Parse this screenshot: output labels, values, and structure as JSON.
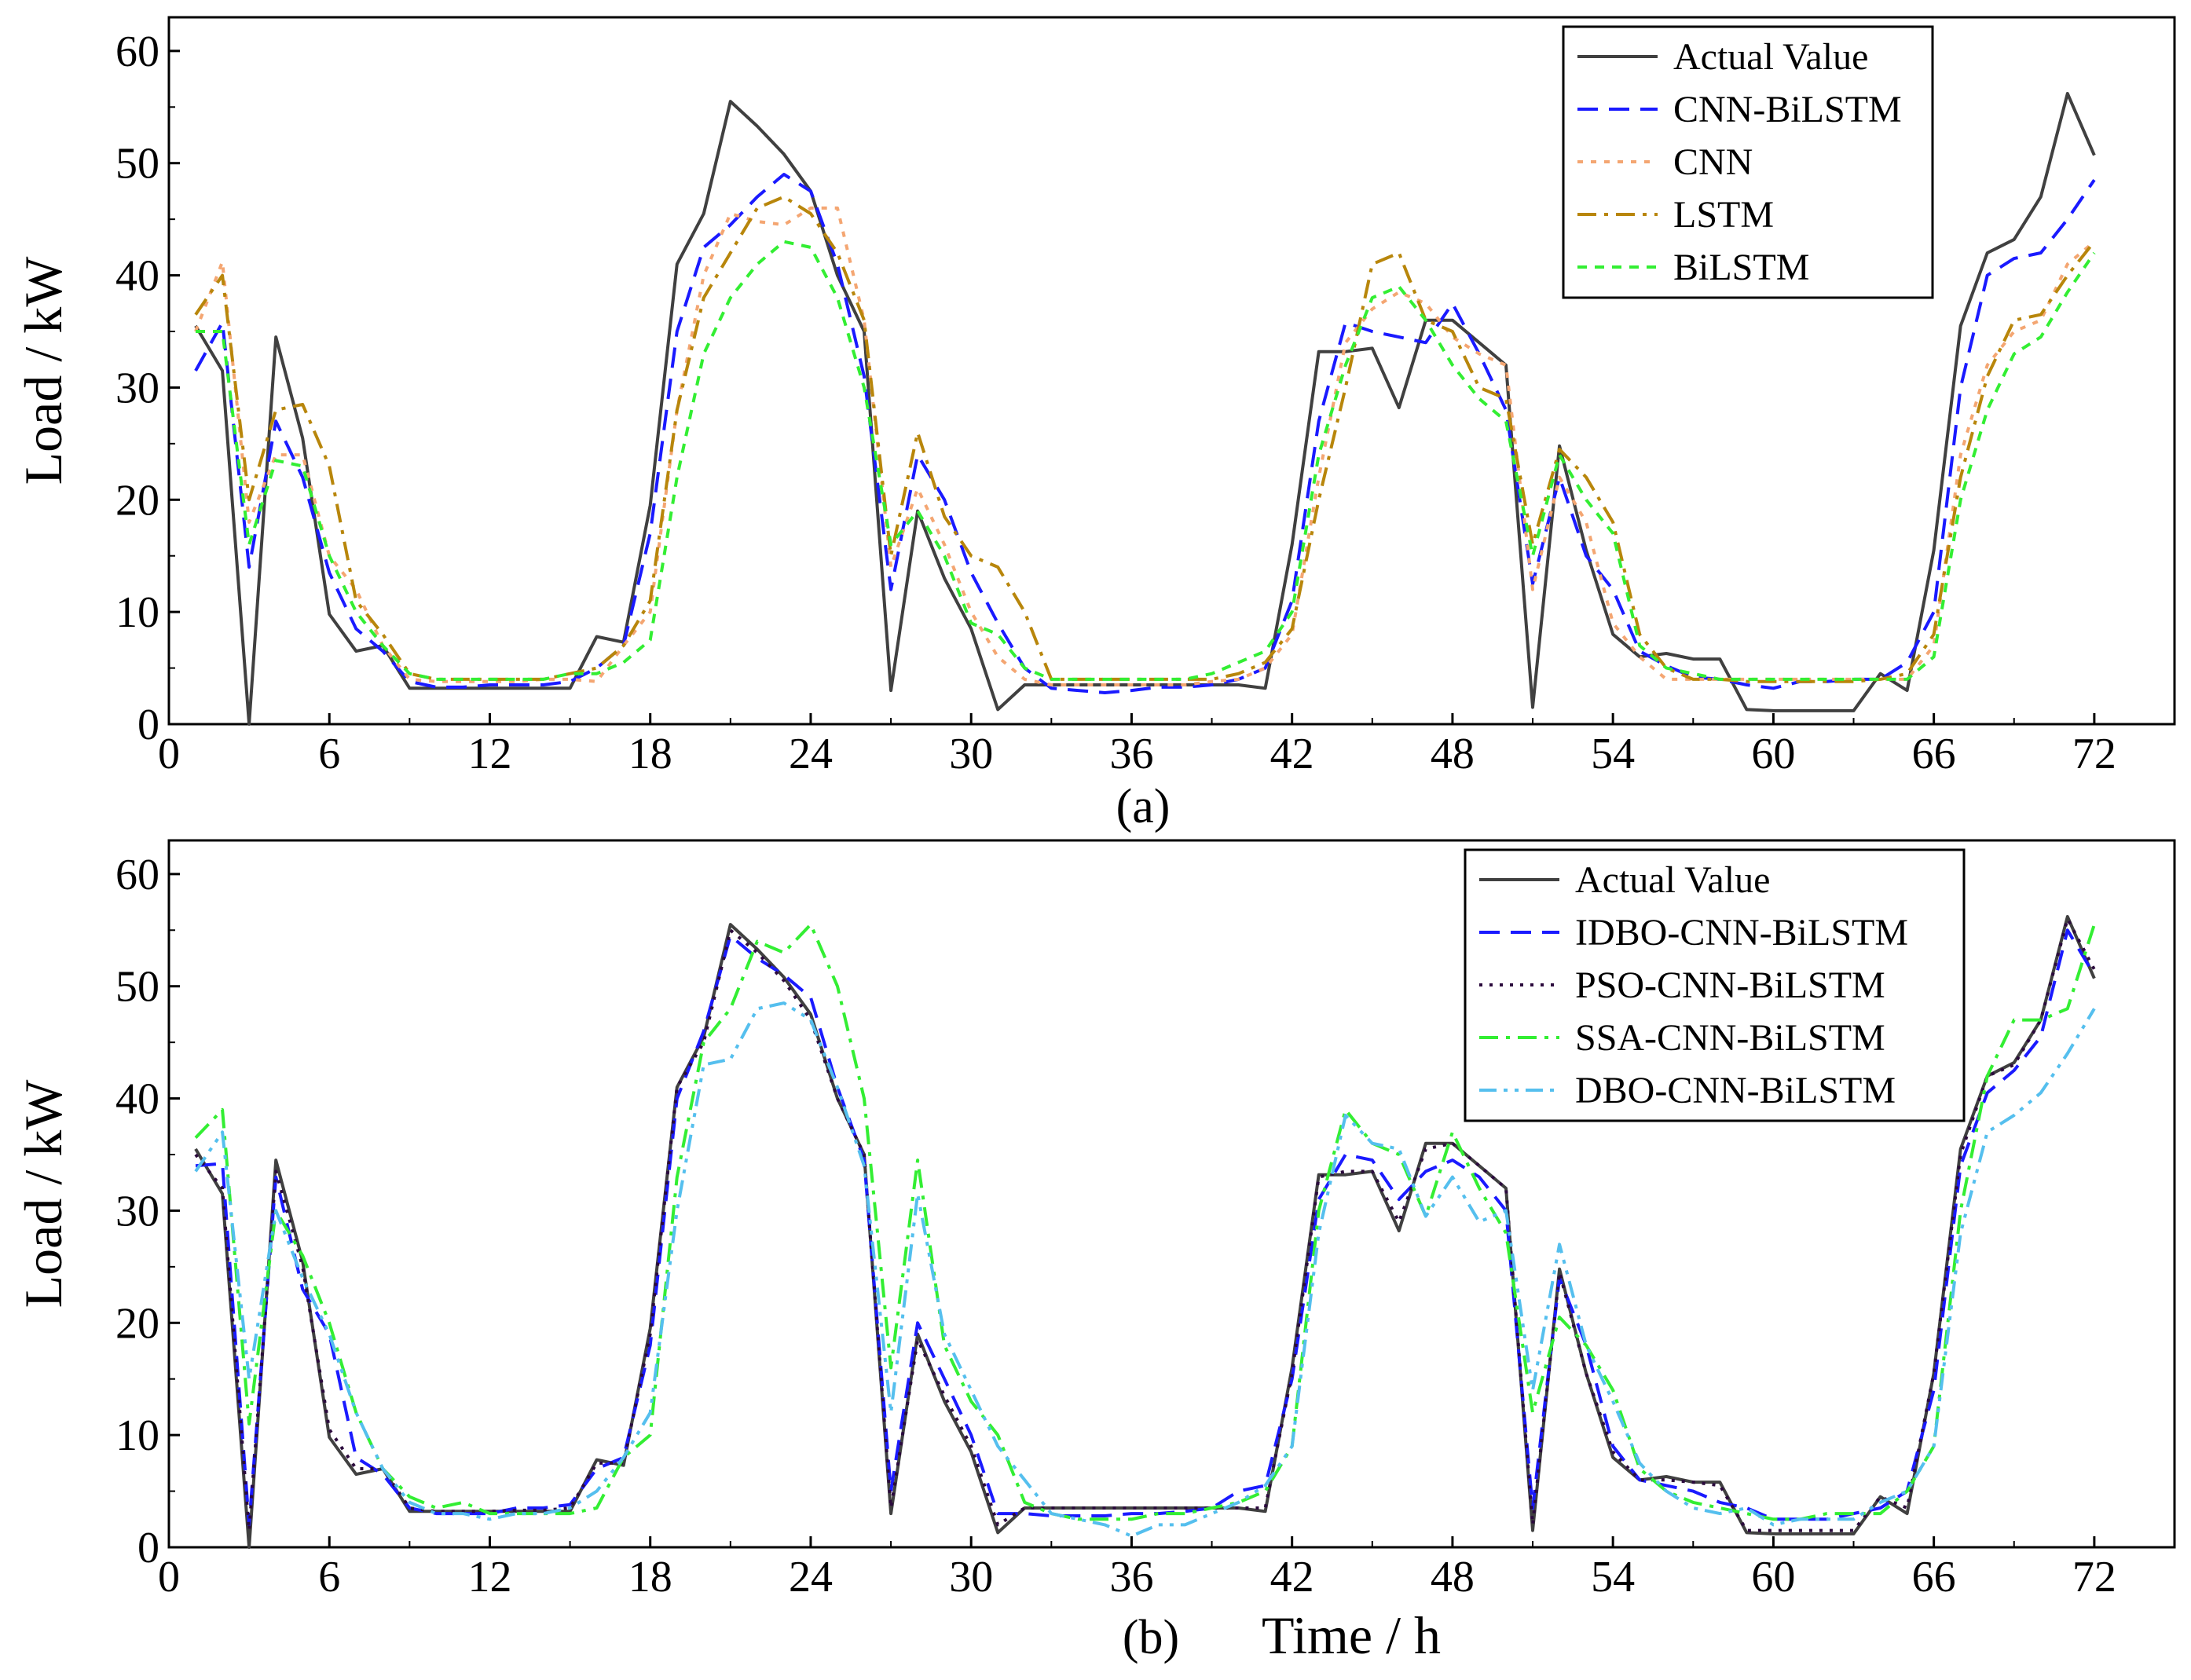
{
  "figure": {
    "x_label": "Time / h",
    "y_label": "Load / kW"
  },
  "chart_data": [
    {
      "type": "line",
      "panel_label": "(a)",
      "ylabel": "Load / kW",
      "xlim": [
        0,
        75
      ],
      "ylim": [
        0,
        63
      ],
      "x_ticks": [
        0,
        6,
        12,
        18,
        24,
        30,
        36,
        42,
        48,
        54,
        60,
        66,
        72
      ],
      "y_ticks": [
        0,
        10,
        20,
        30,
        40,
        50,
        60
      ],
      "legend_position": "top-right",
      "x": [
        1,
        2,
        3,
        4,
        5,
        6,
        7,
        8,
        9,
        10,
        11,
        12,
        13,
        14,
        15,
        16,
        17,
        18,
        19,
        20,
        21,
        22,
        23,
        24,
        25,
        26,
        27,
        28,
        29,
        30,
        31,
        32,
        33,
        34,
        35,
        36,
        37,
        38,
        39,
        40,
        41,
        42,
        43,
        44,
        45,
        46,
        47,
        48,
        49,
        50,
        51,
        52,
        53,
        54,
        55,
        56,
        57,
        58,
        59,
        60,
        61,
        62,
        63,
        64,
        65,
        66,
        67,
        68,
        69,
        70,
        71,
        72
      ],
      "series": [
        {
          "name": "Actual Value",
          "color": "#404040",
          "dash": "solid",
          "values": [
            35.5,
            31.5,
            0.0,
            34.5,
            25.5,
            9.8,
            6.5,
            7.0,
            3.2,
            3.2,
            3.2,
            3.2,
            3.2,
            3.2,
            3.2,
            7.8,
            7.3,
            19.5,
            41.0,
            45.5,
            55.5,
            53.3,
            50.8,
            47.5,
            40.0,
            35.0,
            3.0,
            19.0,
            13.0,
            8.5,
            1.3,
            3.5,
            3.5,
            3.5,
            3.5,
            3.5,
            3.5,
            3.5,
            3.5,
            3.5,
            3.2,
            16.0,
            33.2,
            33.2,
            33.5,
            28.2,
            36.0,
            36.0,
            34.0,
            32.0,
            1.5,
            24.8,
            15.5,
            8.0,
            6.0,
            6.3,
            5.8,
            5.8,
            1.3,
            1.2,
            1.2,
            1.2,
            1.2,
            4.5,
            3.0,
            15.5,
            35.5,
            42.0,
            43.2,
            47.0,
            56.2,
            50.7
          ]
        },
        {
          "name": "CNN-BiLSTM",
          "color": "#1a1aff",
          "dash": "26,14",
          "values": [
            31.5,
            35.8,
            14.0,
            27.0,
            22.0,
            13.5,
            8.5,
            6.5,
            3.8,
            3.3,
            3.3,
            3.5,
            3.5,
            3.5,
            3.8,
            5.0,
            7.0,
            17.0,
            35.0,
            42.5,
            44.5,
            47.0,
            49.0,
            47.5,
            41.0,
            31.0,
            12.0,
            24.0,
            20.0,
            13.5,
            9.0,
            5.0,
            3.2,
            3.0,
            2.8,
            3.0,
            3.3,
            3.3,
            3.5,
            4.0,
            5.0,
            11.0,
            27.0,
            35.8,
            35.0,
            34.5,
            34.0,
            37.5,
            33.0,
            28.0,
            12.5,
            22.0,
            15.0,
            12.0,
            6.5,
            5.2,
            4.2,
            4.0,
            3.5,
            3.2,
            3.8,
            3.8,
            4.0,
            4.0,
            5.5,
            10.0,
            30.0,
            40.0,
            41.5,
            42.0,
            45.0,
            48.5
          ]
        },
        {
          "name": "CNN",
          "color": "#f4a672",
          "dash": "7,10",
          "values": [
            35.0,
            41.2,
            18.0,
            24.0,
            24.0,
            15.0,
            12.0,
            7.0,
            4.0,
            3.8,
            3.8,
            3.8,
            3.8,
            4.0,
            4.0,
            3.8,
            7.0,
            10.0,
            28.0,
            40.0,
            45.5,
            44.8,
            44.5,
            46.0,
            46.0,
            36.0,
            14.0,
            21.0,
            16.0,
            10.0,
            6.0,
            4.0,
            3.5,
            3.5,
            3.5,
            3.5,
            3.5,
            3.5,
            3.8,
            4.0,
            5.0,
            8.0,
            22.0,
            34.0,
            37.0,
            38.5,
            37.5,
            34.5,
            33.0,
            32.0,
            12.0,
            22.0,
            18.0,
            9.0,
            6.0,
            4.0,
            4.0,
            4.0,
            4.0,
            4.0,
            4.0,
            4.0,
            4.0,
            4.0,
            4.0,
            7.0,
            24.0,
            32.0,
            35.0,
            36.0,
            41.0,
            43.0
          ]
        },
        {
          "name": "LSTM",
          "color": "#b8860b",
          "dash": "24,10,5,10",
          "values": [
            36.5,
            40.0,
            20.0,
            28.0,
            28.5,
            23.0,
            11.0,
            8.0,
            4.5,
            4.0,
            4.0,
            4.0,
            4.0,
            4.0,
            4.5,
            5.0,
            7.0,
            11.0,
            28.0,
            38.0,
            42.0,
            46.0,
            47.0,
            45.5,
            42.0,
            36.0,
            15.0,
            26.0,
            18.5,
            15.0,
            14.0,
            10.0,
            4.0,
            4.0,
            4.0,
            4.0,
            4.0,
            4.0,
            4.0,
            4.5,
            5.5,
            8.5,
            20.0,
            30.0,
            41.0,
            42.0,
            36.0,
            35.0,
            30.0,
            29.0,
            16.0,
            24.5,
            22.0,
            18.0,
            8.0,
            5.0,
            4.0,
            4.0,
            3.8,
            3.8,
            3.8,
            3.8,
            3.8,
            4.0,
            4.5,
            8.0,
            22.0,
            31.0,
            36.0,
            36.5,
            40.0,
            43.0
          ]
        },
        {
          "name": "BiLSTM",
          "color": "#33ee33",
          "dash": "12,10",
          "values": [
            35.0,
            35.0,
            16.0,
            23.5,
            23.0,
            15.0,
            10.0,
            7.0,
            4.5,
            4.0,
            4.0,
            4.0,
            4.0,
            4.0,
            4.5,
            4.5,
            5.5,
            7.5,
            22.0,
            33.0,
            38.0,
            41.0,
            43.0,
            42.5,
            38.0,
            30.0,
            16.0,
            19.0,
            15.0,
            9.0,
            8.0,
            5.0,
            4.0,
            4.0,
            4.0,
            4.0,
            4.0,
            4.0,
            4.5,
            5.5,
            6.5,
            10.0,
            24.0,
            32.0,
            38.0,
            39.0,
            36.0,
            32.0,
            29.0,
            27.0,
            15.0,
            24.0,
            20.0,
            17.0,
            7.0,
            5.0,
            4.5,
            4.0,
            4.0,
            4.0,
            4.0,
            4.0,
            4.0,
            4.0,
            4.0,
            6.0,
            20.0,
            28.0,
            33.0,
            34.5,
            38.5,
            42.0
          ]
        }
      ]
    },
    {
      "type": "line",
      "panel_label": "(b)",
      "xlabel": "Time / h",
      "ylabel": "Load / kW",
      "xlim": [
        0,
        75
      ],
      "ylim": [
        0,
        63
      ],
      "x_ticks": [
        0,
        6,
        12,
        18,
        24,
        30,
        36,
        42,
        48,
        54,
        60,
        66,
        72
      ],
      "y_ticks": [
        0,
        10,
        20,
        30,
        40,
        50,
        60
      ],
      "legend_position": "top-right",
      "x": [
        1,
        2,
        3,
        4,
        5,
        6,
        7,
        8,
        9,
        10,
        11,
        12,
        13,
        14,
        15,
        16,
        17,
        18,
        19,
        20,
        21,
        22,
        23,
        24,
        25,
        26,
        27,
        28,
        29,
        30,
        31,
        32,
        33,
        34,
        35,
        36,
        37,
        38,
        39,
        40,
        41,
        42,
        43,
        44,
        45,
        46,
        47,
        48,
        49,
        50,
        51,
        52,
        53,
        54,
        55,
        56,
        57,
        58,
        59,
        60,
        61,
        62,
        63,
        64,
        65,
        66,
        67,
        68,
        69,
        70,
        71,
        72
      ],
      "series": [
        {
          "name": "Actual Value",
          "color": "#404040",
          "dash": "solid",
          "values": [
            35.5,
            31.5,
            0.0,
            34.5,
            25.5,
            9.8,
            6.5,
            7.0,
            3.2,
            3.2,
            3.2,
            3.2,
            3.2,
            3.2,
            3.2,
            7.8,
            7.3,
            19.5,
            41.0,
            45.5,
            55.5,
            53.3,
            50.8,
            47.5,
            40.0,
            35.0,
            3.0,
            19.0,
            13.0,
            8.5,
            1.3,
            3.5,
            3.5,
            3.5,
            3.5,
            3.5,
            3.5,
            3.5,
            3.5,
            3.5,
            3.2,
            16.0,
            33.2,
            33.2,
            33.5,
            28.2,
            36.0,
            36.0,
            34.0,
            32.0,
            1.5,
            24.8,
            15.5,
            8.0,
            6.0,
            6.3,
            5.8,
            5.8,
            1.3,
            1.2,
            1.2,
            1.2,
            1.2,
            4.5,
            3.0,
            15.5,
            35.5,
            42.0,
            43.2,
            47.0,
            56.2,
            50.7
          ]
        },
        {
          "name": "IDBO-CNN-BiLSTM",
          "color": "#1a1aff",
          "dash": "26,14",
          "values": [
            34.0,
            34.2,
            2.0,
            33.0,
            23.0,
            19.0,
            8.0,
            6.5,
            3.5,
            3.0,
            3.0,
            3.0,
            3.5,
            3.5,
            3.8,
            7.0,
            8.0,
            18.0,
            40.0,
            46.0,
            54.5,
            52.5,
            51.0,
            49.0,
            41.0,
            34.5,
            5.0,
            20.0,
            15.0,
            10.0,
            3.0,
            3.0,
            2.8,
            2.8,
            2.8,
            3.0,
            3.0,
            3.2,
            3.5,
            5.0,
            5.5,
            15.0,
            31.0,
            35.0,
            34.5,
            31.0,
            33.5,
            34.5,
            33.0,
            30.0,
            3.5,
            24.0,
            18.0,
            9.0,
            6.0,
            5.5,
            5.0,
            4.0,
            3.5,
            2.5,
            2.5,
            2.5,
            3.0,
            3.5,
            5.0,
            14.0,
            34.0,
            40.5,
            42.5,
            45.5,
            55.0,
            51.0
          ]
        },
        {
          "name": "PSO-CNN-BiLSTM",
          "color": "#2b0a3d",
          "dash": "4,9",
          "values": [
            35.0,
            32.0,
            1.5,
            33.5,
            25.0,
            10.5,
            7.0,
            7.0,
            3.5,
            3.2,
            3.2,
            3.2,
            3.3,
            3.3,
            3.5,
            7.5,
            7.5,
            19.0,
            41.0,
            45.0,
            55.0,
            53.0,
            50.5,
            47.0,
            40.0,
            35.0,
            3.5,
            18.5,
            13.5,
            9.0,
            2.0,
            3.5,
            3.5,
            3.5,
            3.5,
            3.5,
            3.5,
            3.5,
            3.5,
            3.5,
            3.5,
            15.5,
            33.0,
            33.5,
            33.5,
            29.0,
            35.5,
            36.0,
            34.0,
            32.0,
            2.0,
            24.5,
            15.5,
            8.5,
            6.0,
            6.0,
            5.8,
            5.5,
            1.5,
            1.5,
            1.5,
            1.5,
            1.5,
            4.5,
            3.5,
            15.5,
            35.0,
            42.0,
            43.0,
            47.0,
            56.0,
            51.5
          ]
        },
        {
          "name": "SSA-CNN-BiLSTM",
          "color": "#33ee33",
          "dash": "24,10,5,10",
          "values": [
            36.5,
            39.0,
            11.0,
            30.0,
            26.0,
            20.0,
            12.0,
            7.0,
            4.5,
            3.5,
            4.0,
            3.0,
            3.0,
            3.0,
            3.0,
            3.5,
            8.0,
            10.0,
            33.0,
            45.0,
            48.0,
            54.0,
            53.0,
            55.5,
            50.0,
            40.0,
            16.0,
            34.5,
            18.0,
            13.0,
            10.0,
            4.0,
            3.0,
            2.5,
            2.5,
            2.5,
            3.0,
            3.0,
            3.5,
            4.0,
            5.0,
            9.0,
            30.0,
            39.0,
            36.0,
            35.0,
            29.5,
            37.0,
            32.0,
            28.0,
            12.0,
            20.5,
            18.0,
            14.0,
            7.0,
            5.0,
            4.0,
            3.5,
            3.0,
            2.5,
            2.5,
            3.0,
            3.0,
            3.0,
            5.0,
            9.0,
            30.0,
            42.0,
            47.0,
            47.0,
            48.0,
            55.5
          ]
        },
        {
          "name": "DBO-CNN-BiLSTM",
          "color": "#55bfee",
          "dash": "22,9,5,9,5,9",
          "values": [
            33.5,
            37.0,
            15.0,
            30.0,
            24.0,
            19.0,
            12.0,
            7.0,
            4.0,
            3.0,
            3.0,
            2.5,
            3.0,
            3.0,
            3.5,
            5.0,
            8.0,
            12.0,
            30.0,
            43.0,
            43.5,
            48.0,
            48.5,
            47.0,
            41.0,
            34.0,
            12.0,
            31.5,
            19.0,
            14.0,
            9.0,
            6.0,
            3.0,
            2.5,
            2.0,
            1.0,
            2.0,
            2.0,
            3.0,
            4.0,
            5.5,
            9.0,
            28.0,
            38.5,
            36.0,
            35.5,
            29.5,
            33.0,
            29.0,
            30.0,
            14.0,
            27.0,
            18.0,
            13.0,
            7.5,
            5.0,
            3.5,
            3.0,
            3.5,
            2.0,
            2.5,
            2.5,
            2.5,
            4.0,
            5.0,
            9.0,
            28.0,
            37.0,
            38.5,
            40.5,
            44.0,
            48.0
          ]
        }
      ]
    }
  ]
}
